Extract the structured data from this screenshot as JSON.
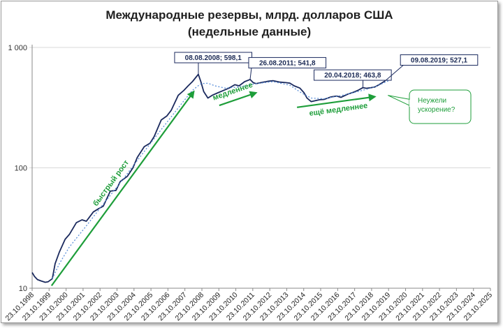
{
  "title_line1": "Международные резервы, млрд. долларов США",
  "title_line2": "(недельные данные)",
  "colors": {
    "main": "#1b2a5e",
    "trend": "#5b8fd9",
    "green": "#1e9e3a",
    "callout_border": "#1b2a5e"
  },
  "chart_data": {
    "type": "line",
    "title": "Международные резервы, млрд. долларов США (недельные данные)",
    "yscale": "log",
    "ylim": [
      10,
      1000
    ],
    "yticks": [
      {
        "value": 10,
        "label": "10"
      },
      {
        "value": 100,
        "label": "100"
      },
      {
        "value": 1000,
        "label": "1 000"
      }
    ],
    "xlim": [
      "1998-10-23",
      "2025-10-23"
    ],
    "xtick_labels": [
      "23.10.1998",
      "23.10.1999",
      "23.10.2000",
      "23.10.2001",
      "23.10.2002",
      "23.10.2003",
      "23.10.2004",
      "23.10.2005",
      "23.10.2006",
      "23.10.2007",
      "23.10.2008",
      "23.10.2009",
      "23.10.2010",
      "23.10.2011",
      "23.10.2012",
      "23.10.2013",
      "23.10.2014",
      "23.10.2015",
      "23.10.2016",
      "23.10.2017",
      "23.10.2018",
      "23.10.2019",
      "23.10.2020",
      "23.10.2021",
      "23.10.2022",
      "23.10.2023",
      "23.10.2024",
      "23.10.2025"
    ],
    "series": [
      {
        "style": "solid",
        "points": [
          [
            "1998-10-23",
            13.5
          ],
          [
            "1998-12-15",
            12.5
          ],
          [
            "1999-02-15",
            11.8
          ],
          [
            "1999-05-01",
            11.5
          ],
          [
            "1999-08-01",
            11.2
          ],
          [
            "1999-10-01",
            11.3
          ],
          [
            "2000-01-01",
            12.0
          ],
          [
            "2000-03-01",
            16.0
          ],
          [
            "2000-06-01",
            20.0
          ],
          [
            "2000-10-01",
            25.5
          ],
          [
            "2001-01-01",
            28.0
          ],
          [
            "2001-06-01",
            35.0
          ],
          [
            "2001-10-01",
            37.0
          ],
          [
            "2002-01-01",
            36.0
          ],
          [
            "2002-06-01",
            43.0
          ],
          [
            "2002-10-01",
            46.0
          ],
          [
            "2003-01-01",
            48.0
          ],
          [
            "2003-06-01",
            64.0
          ],
          [
            "2003-10-01",
            65.0
          ],
          [
            "2004-01-01",
            77.0
          ],
          [
            "2004-06-01",
            85.0
          ],
          [
            "2004-10-01",
            100.0
          ],
          [
            "2005-01-01",
            122.0
          ],
          [
            "2005-06-01",
            150.0
          ],
          [
            "2005-10-01",
            160.0
          ],
          [
            "2006-01-01",
            182.0
          ],
          [
            "2006-06-01",
            250.0
          ],
          [
            "2006-10-01",
            270.0
          ],
          [
            "2007-01-01",
            300.0
          ],
          [
            "2007-06-01",
            400.0
          ],
          [
            "2007-10-01",
            440.0
          ],
          [
            "2008-01-01",
            480.0
          ],
          [
            "2008-04-01",
            520.0
          ],
          [
            "2008-08-08",
            598.1
          ],
          [
            "2008-10-01",
            520.0
          ],
          [
            "2008-12-01",
            430.0
          ],
          [
            "2009-03-01",
            380.0
          ],
          [
            "2009-06-01",
            400.0
          ],
          [
            "2009-10-01",
            420.0
          ],
          [
            "2010-01-01",
            435.0
          ],
          [
            "2010-06-01",
            460.0
          ],
          [
            "2010-10-01",
            490.0
          ],
          [
            "2011-01-01",
            480.0
          ],
          [
            "2011-05-01",
            520.0
          ],
          [
            "2011-08-26",
            541.8
          ],
          [
            "2011-11-01",
            510.0
          ],
          [
            "2012-01-01",
            500.0
          ],
          [
            "2012-06-01",
            515.0
          ],
          [
            "2012-10-01",
            525.0
          ],
          [
            "2013-01-01",
            530.0
          ],
          [
            "2013-06-01",
            515.0
          ],
          [
            "2013-10-01",
            510.0
          ],
          [
            "2014-01-01",
            505.0
          ],
          [
            "2014-04-01",
            480.0
          ],
          [
            "2014-08-01",
            460.0
          ],
          [
            "2014-11-01",
            420.0
          ],
          [
            "2015-01-01",
            380.0
          ],
          [
            "2015-04-01",
            355.0
          ],
          [
            "2015-10-01",
            368.0
          ],
          [
            "2016-01-01",
            370.0
          ],
          [
            "2016-06-01",
            388.0
          ],
          [
            "2016-10-01",
            395.0
          ],
          [
            "2017-01-01",
            385.0
          ],
          [
            "2017-06-01",
            410.0
          ],
          [
            "2017-10-01",
            425.0
          ],
          [
            "2018-01-01",
            440.0
          ],
          [
            "2018-04-20",
            463.8
          ],
          [
            "2018-07-01",
            458.0
          ],
          [
            "2018-10-01",
            462.0
          ],
          [
            "2019-01-01",
            470.0
          ],
          [
            "2019-04-01",
            490.0
          ],
          [
            "2019-08-09",
            527.1
          ]
        ]
      },
      {
        "style": "dotted",
        "points": [
          [
            "2000-01-01",
            12.0
          ],
          [
            "2000-06-01",
            16.0
          ],
          [
            "2001-01-01",
            22.0
          ],
          [
            "2002-01-01",
            33.0
          ],
          [
            "2003-01-01",
            50.0
          ],
          [
            "2004-01-01",
            75.0
          ],
          [
            "2005-01-01",
            115.0
          ],
          [
            "2006-01-01",
            175.0
          ],
          [
            "2007-01-01",
            265.0
          ],
          [
            "2007-10-01",
            360.0
          ],
          [
            "2008-04-01",
            440.0
          ],
          [
            "2008-10-01",
            500.0
          ],
          [
            "2009-03-01",
            505.0
          ],
          [
            "2009-08-01",
            480.0
          ],
          [
            "2010-03-01",
            460.0
          ],
          [
            "2011-01-01",
            470.0
          ],
          [
            "2012-01-01",
            500.0
          ],
          [
            "2013-01-01",
            520.0
          ],
          [
            "2014-01-01",
            485.0
          ],
          [
            "2014-09-01",
            420.0
          ],
          [
            "2015-04-01",
            380.0
          ],
          [
            "2016-01-01",
            375.0
          ],
          [
            "2017-01-01",
            398.0
          ],
          [
            "2018-01-01",
            430.0
          ],
          [
            "2019-01-01",
            470.0
          ],
          [
            "2020-01-01",
            545.0
          ]
        ]
      }
    ],
    "annotations": {
      "callouts": [
        {
          "text": "08.08.2008;  598,1",
          "x": "2008-08-08",
          "y": 598.1
        },
        {
          "text": "26.08.2011;  541,8",
          "x": "2011-08-26",
          "y": 541.8
        },
        {
          "text": "20.04.2018;  463,8",
          "x": "2018-04-20",
          "y": 463.8
        },
        {
          "text": "09.08.2019;  527,1",
          "x": "2019-08-09",
          "y": 527.1
        }
      ],
      "arrows": [
        {
          "label": "быстрый рост",
          "from": [
            "1999-12-15",
            10.5
          ],
          "to": [
            "2008-05-01",
            430
          ]
        },
        {
          "label": "медленнее",
          "from": [
            "2009-11-01",
            330
          ],
          "to": [
            "2012-01-01",
            420
          ]
        },
        {
          "label": "ещё медленнее",
          "from": [
            "2014-06-01",
            318
          ],
          "to": [
            "2019-01-01",
            390
          ]
        }
      ],
      "note": {
        "lines": [
          "Неужели",
          "ускорение?"
        ],
        "target": [
          "2019-08-09",
          400
        ]
      }
    }
  }
}
